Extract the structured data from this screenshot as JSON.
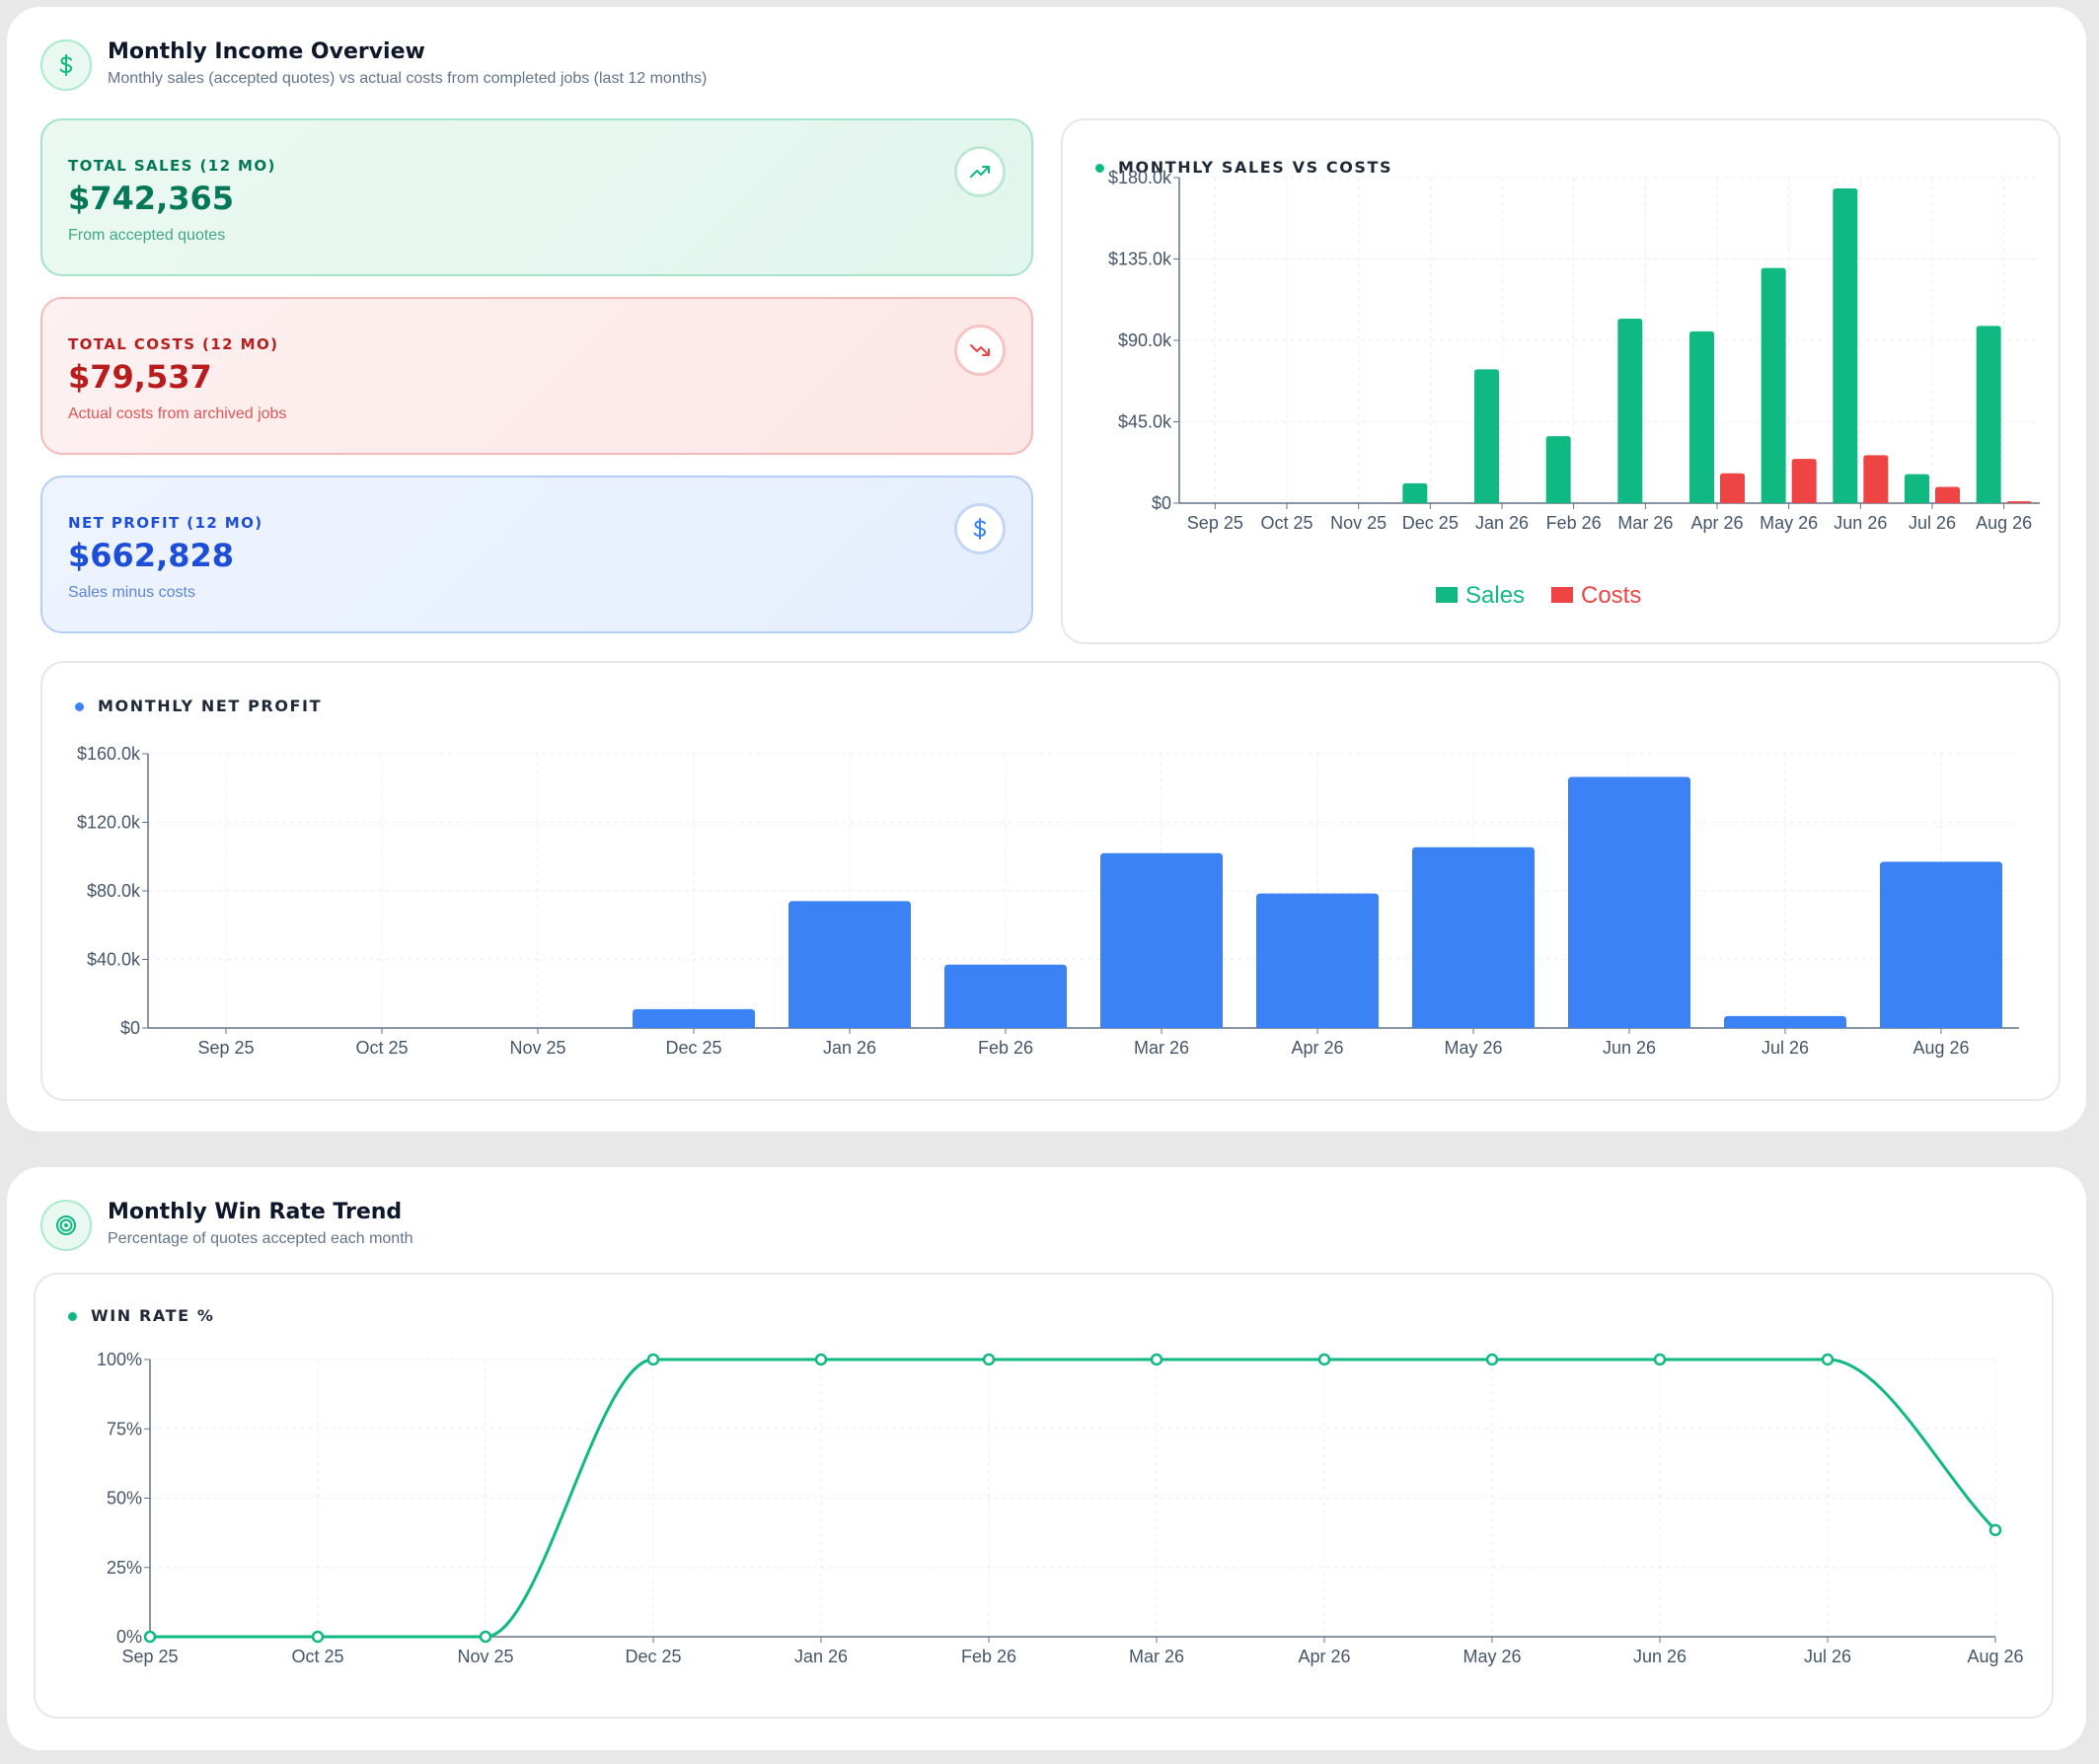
{
  "income_section": {
    "title": "Monthly Income Overview",
    "subtitle": "Monthly sales (accepted quotes) vs actual costs from completed jobs (last 12 months)",
    "icon": "dollar-icon"
  },
  "stats": {
    "sales": {
      "label": "TOTAL SALES (12 MO)",
      "value": "$742,365",
      "desc": "From accepted quotes",
      "icon": "trending-up-icon",
      "color": "#047857"
    },
    "costs": {
      "label": "TOTAL COSTS (12 MO)",
      "value": "$79,537",
      "desc": "Actual costs from archived jobs",
      "icon": "trending-down-icon",
      "color": "#b91c1c"
    },
    "profit": {
      "label": "NET PROFIT (12 MO)",
      "value": "$662,828",
      "desc": "Sales minus costs",
      "icon": "dollar-icon",
      "color": "#1d4ed8"
    }
  },
  "win_section": {
    "title": "Monthly Win Rate Trend",
    "subtitle": "Percentage of quotes accepted each month",
    "icon": "target-icon"
  },
  "chart_data": [
    {
      "type": "bar",
      "title": "MONTHLY SALES VS COSTS",
      "categories": [
        "Sep 25",
        "Oct 25",
        "Nov 25",
        "Dec 25",
        "Jan 26",
        "Feb 26",
        "Mar 26",
        "Apr 26",
        "May 26",
        "Jun 26",
        "Jul 26",
        "Aug 26"
      ],
      "series": [
        {
          "name": "Sales",
          "color": "#10b981",
          "values": [
            0,
            0,
            0,
            11000,
            74000,
            37000,
            102000,
            95000,
            130000,
            174000,
            16000,
            98000
          ]
        },
        {
          "name": "Costs",
          "color": "#ef4444",
          "values": [
            0,
            0,
            0,
            0,
            0,
            0,
            0,
            16500,
            24500,
            26500,
            9000,
            1000
          ]
        }
      ],
      "y_ticks": [
        "$0",
        "$45.0k",
        "$90.0k",
        "$135.0k",
        "$180.0k"
      ],
      "ylim": [
        0,
        180000
      ],
      "legend": "bottom",
      "grid": true
    },
    {
      "type": "bar",
      "title": "MONTHLY NET PROFIT",
      "categories": [
        "Sep 25",
        "Oct 25",
        "Nov 25",
        "Dec 25",
        "Jan 26",
        "Feb 26",
        "Mar 26",
        "Apr 26",
        "May 26",
        "Jun 26",
        "Jul 26",
        "Aug 26"
      ],
      "series": [
        {
          "color": "#3b82f6",
          "values": [
            0,
            0,
            0,
            11000,
            74000,
            37000,
            102000,
            78500,
            105500,
            146500,
            7000,
            97000
          ]
        }
      ],
      "y_ticks": [
        "$0",
        "$40.0k",
        "$80.0k",
        "$120.0k",
        "$160.0k"
      ],
      "ylim": [
        0,
        160000
      ],
      "grid": true
    },
    {
      "type": "line",
      "title": "WIN RATE %",
      "categories": [
        "Sep 25",
        "Oct 25",
        "Nov 25",
        "Dec 25",
        "Jan 26",
        "Feb 26",
        "Mar 26",
        "Apr 26",
        "May 26",
        "Jun 26",
        "Jul 26",
        "Aug 26"
      ],
      "series": [
        {
          "color": "#10b981",
          "values": [
            0,
            0,
            0,
            100,
            100,
            100,
            100,
            100,
            100,
            100,
            100,
            38.5
          ]
        }
      ],
      "y_ticks": [
        "0%",
        "25%",
        "50%",
        "75%",
        "100%"
      ],
      "ylim": [
        0,
        100
      ],
      "grid": true
    }
  ]
}
